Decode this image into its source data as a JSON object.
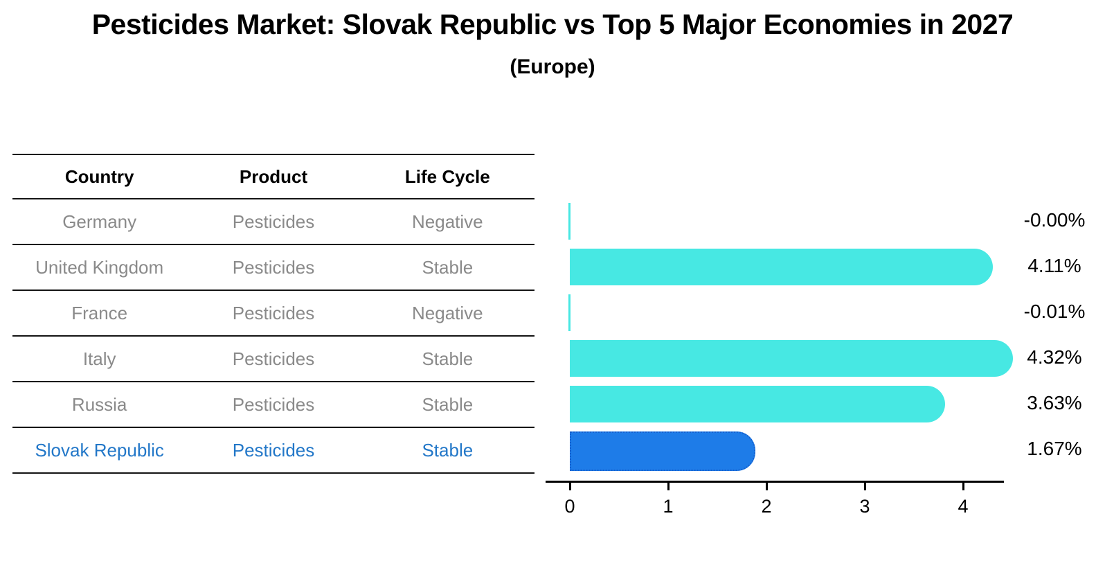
{
  "header": {
    "title": "Pesticides Market: Slovak Republic vs Top 5 Major Economies in 2027",
    "subtitle": "(Europe)"
  },
  "table": {
    "columns": [
      "Country",
      "Product",
      "Life Cycle"
    ],
    "rows": [
      {
        "country": "Germany",
        "product": "Pesticides",
        "life_cycle": "Negative",
        "highlight": false
      },
      {
        "country": "United Kingdom",
        "product": "Pesticides",
        "life_cycle": "Stable",
        "highlight": false
      },
      {
        "country": "France",
        "product": "Pesticides",
        "life_cycle": "Negative",
        "highlight": false
      },
      {
        "country": "Italy",
        "product": "Pesticides",
        "life_cycle": "Stable",
        "highlight": false
      },
      {
        "country": "Russia",
        "product": "Pesticides",
        "life_cycle": "Stable",
        "highlight": false
      },
      {
        "country": "Slovak Republic",
        "product": "Pesticides",
        "life_cycle": "Stable",
        "highlight": true
      }
    ]
  },
  "chart_data": {
    "type": "bar",
    "orientation": "horizontal",
    "title": "Pesticides Market: Slovak Republic vs Top 5 Major Economies in 2027",
    "subtitle": "(Europe)",
    "categories": [
      "Germany",
      "United Kingdom",
      "France",
      "Italy",
      "Russia",
      "Slovak Republic"
    ],
    "values": [
      -0.0,
      4.11,
      -0.01,
      4.32,
      3.63,
      1.67
    ],
    "value_labels": [
      "-0.00%",
      "4.11%",
      "-0.01%",
      "4.32%",
      "3.63%",
      "1.67%"
    ],
    "x_ticks": [
      0,
      1,
      2,
      3,
      4
    ],
    "xlim": [
      0,
      4.55
    ],
    "grid": false,
    "legend": "none",
    "bar_color": "#47e8e3",
    "highlight_color": "#1e7ce8",
    "highlight_index": 5
  },
  "colors": {
    "bar_cyan": "#47e8e3",
    "bar_blue": "#1e7ce8",
    "bar_blue_border": "#1560ce",
    "highlight_text": "#2277c8",
    "muted_text": "#8a8a8a",
    "line": "#141414"
  }
}
